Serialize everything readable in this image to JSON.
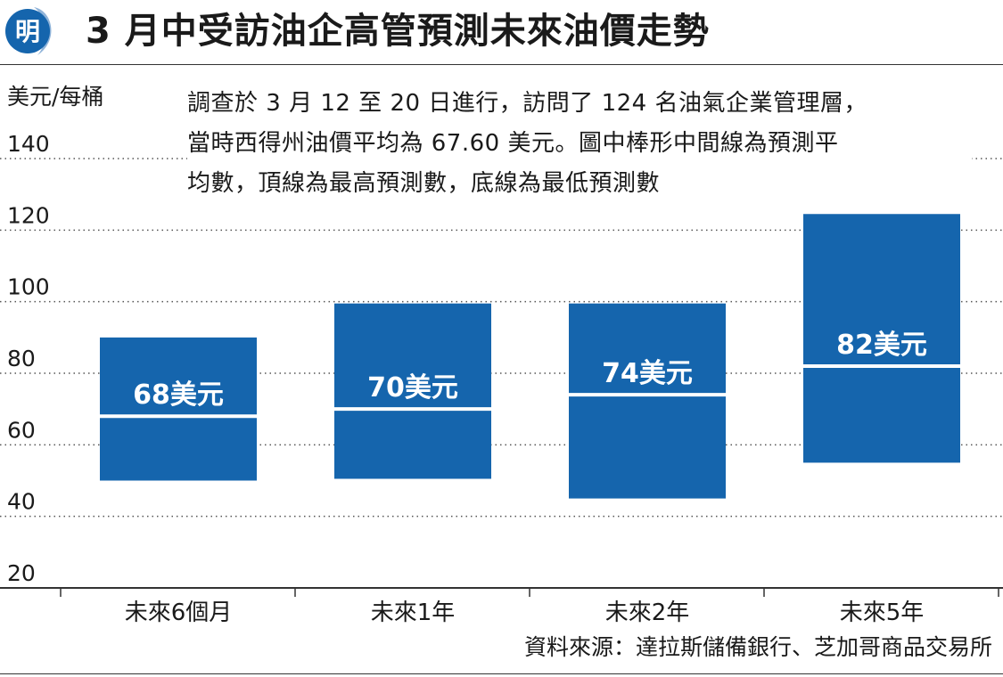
{
  "header": {
    "logo_text": "明",
    "title": "3 月中受訪油企高管預測未來油價走勢"
  },
  "chart_data": {
    "type": "bar",
    "unit_label": "美元/每桶",
    "note_lines": [
      "調查於 3 月 12 至 20 日進行，訪問了 124 名油氣企業管理層，",
      "當時西得州油價平均為 67.60 美元。圖中棒形中間線為預測平",
      "均數，頂線為最高預測數，底線為最低預測數"
    ],
    "ylim": [
      20,
      140
    ],
    "y_ticks": [
      "140",
      "120",
      "100",
      "80",
      "60",
      "40",
      "20"
    ],
    "categories": [
      "未來6個月",
      "未來1年",
      "未來2年",
      "未來5年"
    ],
    "series": [
      {
        "high": 90,
        "low": 50,
        "average": 68
      },
      {
        "high": 99.5,
        "low": 50.5,
        "average": 70
      },
      {
        "high": 99.5,
        "low": 45,
        "average": 74
      },
      {
        "high": 124.5,
        "low": 55,
        "average": 82
      }
    ],
    "data_labels": [
      "68美元",
      "70美元",
      "74美元",
      "82美元"
    ],
    "grid": true,
    "colors": {
      "bar": "#1565ad",
      "midline": "#ffffff",
      "axis": "#333333"
    }
  },
  "footer": {
    "source": "資料來源：達拉斯儲備銀行、芝加哥商品交易所"
  }
}
